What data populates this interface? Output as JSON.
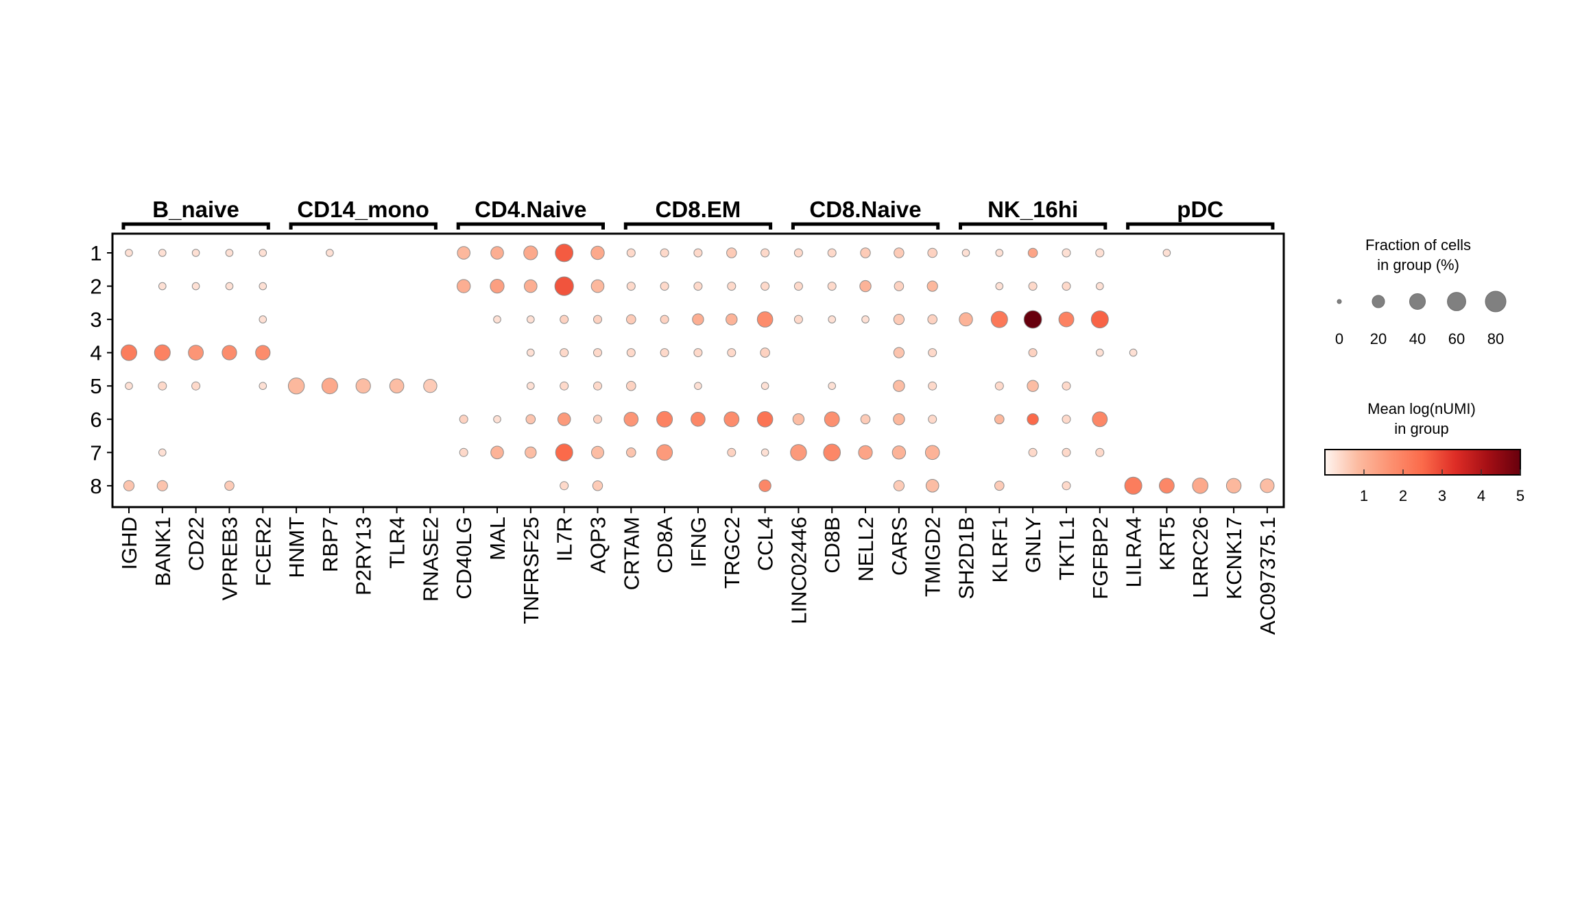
{
  "chart_data": {
    "type": "dotplot",
    "groups": [
      {
        "label": "B_naive",
        "genes": [
          "IGHD",
          "BANK1",
          "CD22",
          "VPREB3",
          "FCER2"
        ]
      },
      {
        "label": "CD14_mono",
        "genes": [
          "HNMT",
          "RBP7",
          "P2RY13",
          "TLR4",
          "RNASE2"
        ]
      },
      {
        "label": "CD4.Naive",
        "genes": [
          "CD40LG",
          "MAL",
          "TNFRSF25",
          "IL7R",
          "AQP3"
        ]
      },
      {
        "label": "CD8.EM",
        "genes": [
          "CRTAM",
          "CD8A",
          "IFNG",
          "TRGC2",
          "CCL4"
        ]
      },
      {
        "label": "CD8.Naive",
        "genes": [
          "LINC02446",
          "CD8B",
          "NELL2",
          "CARS",
          "TMIGD2"
        ]
      },
      {
        "label": "NK_16hi",
        "genes": [
          "SH2D1B",
          "KLRF1",
          "GNLY",
          "TKTL1",
          "FGFBP2"
        ]
      },
      {
        "label": "pDC",
        "genes": [
          "LILRA4",
          "KRT5",
          "LRRC26",
          "KCNK17",
          "AC097375.1"
        ]
      }
    ],
    "rows": [
      "1",
      "2",
      "3",
      "4",
      "5",
      "6",
      "7",
      "8"
    ],
    "fraction": [
      [
        3,
        3,
        3,
        3,
        3,
        0,
        3,
        0,
        0,
        0,
        22,
        22,
        28,
        55,
        25,
        5,
        5,
        5,
        10,
        5,
        5,
        5,
        10,
        10,
        8,
        3,
        3,
        8,
        5,
        5,
        0,
        3,
        0,
        0,
        0
      ],
      [
        0,
        3,
        3,
        3,
        3,
        0,
        0,
        0,
        0,
        0,
        25,
        28,
        22,
        62,
        22,
        5,
        5,
        5,
        5,
        5,
        5,
        5,
        15,
        8,
        12,
        0,
        3,
        5,
        5,
        3,
        0,
        0,
        0,
        0,
        0
      ],
      [
        0,
        0,
        0,
        0,
        3,
        0,
        0,
        0,
        0,
        0,
        0,
        3,
        3,
        5,
        5,
        8,
        5,
        15,
        15,
        38,
        5,
        3,
        3,
        12,
        8,
        25,
        45,
        55,
        35,
        50,
        0,
        0,
        0,
        0,
        0
      ],
      [
        40,
        40,
        35,
        32,
        32,
        0,
        0,
        0,
        0,
        0,
        0,
        0,
        3,
        5,
        5,
        5,
        5,
        5,
        5,
        8,
        0,
        0,
        0,
        12,
        5,
        0,
        0,
        5,
        0,
        3,
        3,
        0,
        0,
        0,
        0
      ],
      [
        3,
        5,
        5,
        0,
        3,
        42,
        40,
        32,
        30,
        25,
        0,
        0,
        3,
        5,
        5,
        8,
        0,
        3,
        0,
        3,
        0,
        3,
        0,
        15,
        5,
        0,
        5,
        15,
        5,
        0,
        0,
        0,
        0,
        0,
        0
      ],
      [
        0,
        0,
        0,
        0,
        0,
        0,
        0,
        0,
        0,
        0,
        5,
        3,
        8,
        22,
        5,
        30,
        40,
        30,
        35,
        38,
        15,
        35,
        8,
        15,
        5,
        0,
        8,
        15,
        5,
        35,
        0,
        0,
        0,
        0,
        0
      ],
      [
        0,
        3,
        0,
        0,
        0,
        0,
        0,
        0,
        0,
        0,
        5,
        22,
        15,
        50,
        20,
        8,
        40,
        0,
        5,
        3,
        42,
        48,
        28,
        25,
        30,
        0,
        0,
        5,
        5,
        5,
        0,
        0,
        0,
        0,
        0
      ],
      [
        12,
        12,
        0,
        8,
        0,
        0,
        0,
        0,
        0,
        0,
        0,
        0,
        0,
        5,
        10,
        0,
        0,
        0,
        0,
        18,
        0,
        0,
        0,
        12,
        22,
        0,
        8,
        0,
        5,
        0,
        50,
        35,
        38,
        33,
        28
      ]
    ],
    "mean_expression": [
      [
        0.3,
        0.3,
        0.3,
        0.3,
        0.3,
        0,
        0.3,
        0,
        0,
        0,
        0.9,
        1.1,
        1.2,
        2.7,
        1.2,
        0.4,
        0.4,
        0.4,
        0.6,
        0.4,
        0.4,
        0.4,
        0.6,
        0.6,
        0.5,
        0.3,
        0.3,
        1.3,
        0.3,
        0.3,
        0,
        0.3,
        0,
        0,
        0
      ],
      [
        0,
        0.3,
        0.3,
        0.3,
        0.3,
        0,
        0,
        0,
        0,
        0,
        1.1,
        1.4,
        1.1,
        2.8,
        0.9,
        0.4,
        0.4,
        0.4,
        0.4,
        0.4,
        0.4,
        0.4,
        1.0,
        0.5,
        0.9,
        0,
        0.3,
        0.4,
        0.4,
        0.3,
        0,
        0,
        0,
        0,
        0
      ],
      [
        0,
        0,
        0,
        0,
        0.3,
        0,
        0,
        0,
        0,
        0,
        0,
        0.3,
        0.3,
        0.5,
        0.5,
        0.6,
        0.5,
        1.1,
        1.0,
        1.8,
        0.4,
        0.3,
        0.3,
        0.6,
        0.5,
        1.0,
        2.2,
        5.0,
        2.0,
        2.6,
        0,
        0,
        0,
        0,
        0
      ],
      [
        2.1,
        2.0,
        1.6,
        1.8,
        1.8,
        0,
        0,
        0,
        0,
        0,
        0,
        0,
        0.3,
        0.4,
        0.4,
        0.4,
        0.4,
        0.4,
        0.4,
        0.5,
        0,
        0,
        0,
        0.7,
        0.4,
        0,
        0,
        0.5,
        0,
        0.3,
        0.3,
        0,
        0,
        0,
        0
      ],
      [
        0.3,
        0.4,
        0.4,
        0,
        0.3,
        0.9,
        1.2,
        0.8,
        0.8,
        0.6,
        0,
        0,
        0.3,
        0.4,
        0.4,
        0.5,
        0,
        0.3,
        0,
        0.3,
        0,
        0.3,
        0,
        0.8,
        0.4,
        0,
        0.4,
        0.8,
        0.4,
        0,
        0,
        0,
        0,
        0,
        0
      ],
      [
        0,
        0,
        0,
        0,
        0,
        0,
        0,
        0,
        0,
        0,
        0.5,
        0.3,
        0.7,
        1.5,
        0.5,
        1.6,
        2.0,
        1.9,
        1.8,
        2.3,
        0.8,
        1.7,
        0.6,
        0.9,
        0.4,
        0,
        0.9,
        2.5,
        0.4,
        1.9,
        0,
        0,
        0,
        0,
        0
      ],
      [
        0,
        0.3,
        0,
        0,
        0,
        0,
        0,
        0,
        0,
        0,
        0.4,
        1.0,
        0.8,
        2.5,
        0.8,
        0.7,
        1.5,
        0,
        0.5,
        0.3,
        1.5,
        1.9,
        1.3,
        1.0,
        1.0,
        0,
        0,
        0.4,
        0.4,
        0.4,
        0,
        0,
        0,
        0,
        0
      ],
      [
        0.7,
        0.7,
        0,
        0.6,
        0,
        0,
        0,
        0,
        0,
        0,
        0,
        0,
        0,
        0.4,
        0.6,
        0,
        0,
        0,
        0,
        1.9,
        0,
        0,
        0,
        0.6,
        0.8,
        0,
        0.6,
        0,
        0.4,
        0,
        2.1,
        1.9,
        1.2,
        0.9,
        0.8
      ]
    ],
    "size_legend": {
      "title_line1": "Fraction of cells",
      "title_line2": "in group (%)",
      "values": [
        0,
        20,
        40,
        60,
        80
      ]
    },
    "color_legend": {
      "title_line1": "Mean log(nUMI)",
      "title_line2": "in group",
      "ticks": [
        1,
        2,
        3,
        4,
        5
      ],
      "range": [
        0,
        5
      ],
      "colors": [
        "#fff5f0",
        "#fcbba1",
        "#fc9272",
        "#fb6a4a",
        "#de2d26",
        "#a50f15",
        "#67000d"
      ]
    }
  }
}
